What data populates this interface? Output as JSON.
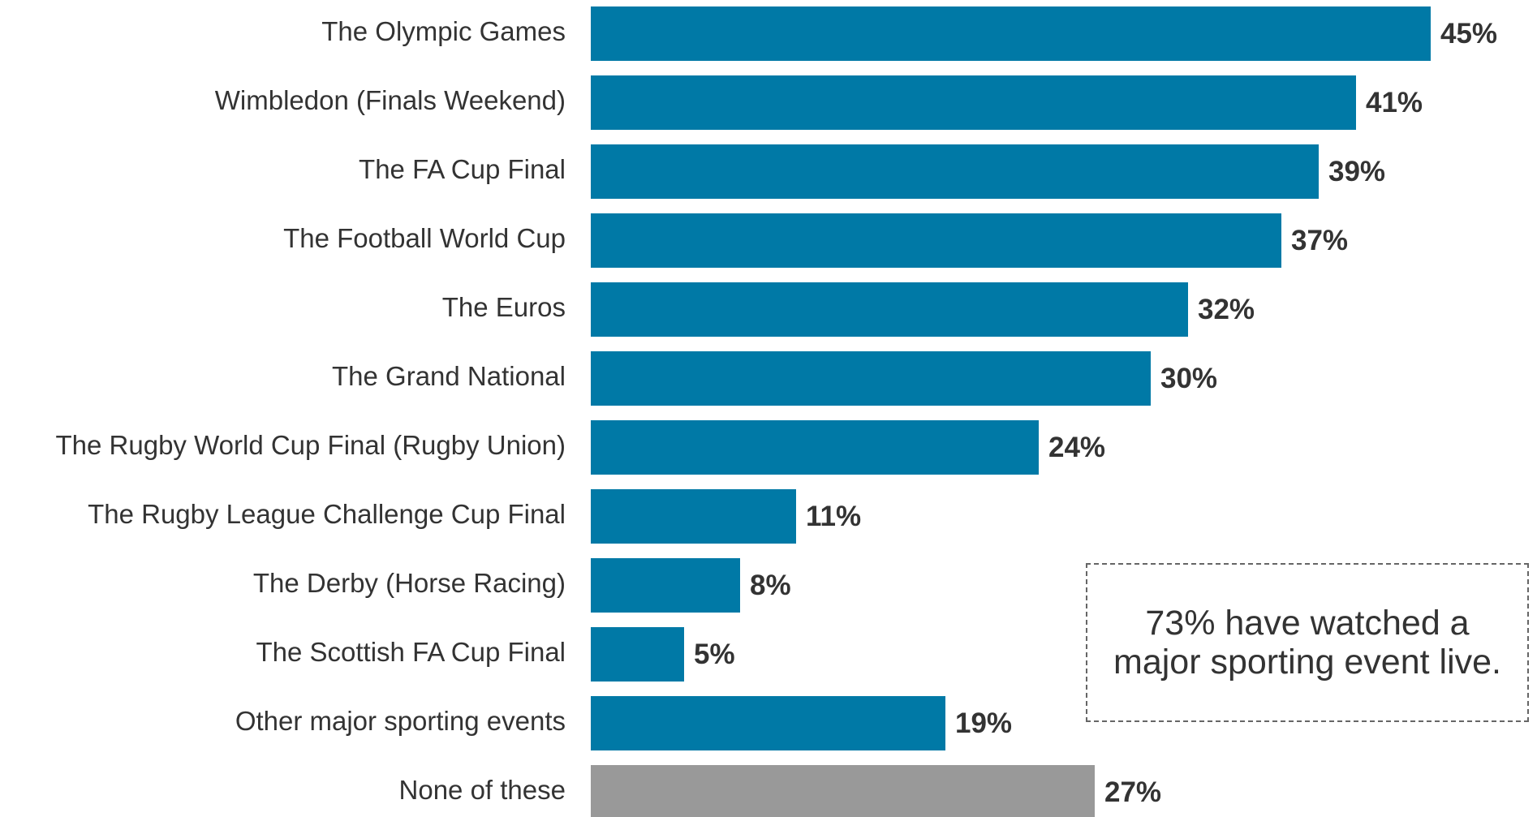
{
  "chart_data": {
    "type": "barh",
    "categories": [
      "The Olympic Games",
      "Wimbledon (Finals Weekend)",
      "The FA Cup Final",
      "The Football World Cup",
      "The Euros",
      "The Grand National",
      "The Rugby World Cup Final (Rugby Union)",
      "The Rugby League Challenge Cup Final",
      "The Derby (Horse Racing)",
      "The Scottish FA Cup Final",
      "Other major sporting events",
      "None of these"
    ],
    "values": [
      45,
      41,
      39,
      37,
      32,
      30,
      24,
      11,
      8,
      5,
      19,
      27
    ],
    "value_labels": [
      "45%",
      "41%",
      "39%",
      "37%",
      "32%",
      "30%",
      "24%",
      "11%",
      "8%",
      "5%",
      "19%",
      "27%"
    ],
    "colors": [
      "#0079a6",
      "#0079a6",
      "#0079a6",
      "#0079a6",
      "#0079a6",
      "#0079a6",
      "#0079a6",
      "#0079a6",
      "#0079a6",
      "#0079a6",
      "#0079a6",
      "#999999"
    ],
    "xlim": [
      0,
      50
    ],
    "annotation": "73% have watched a major sporting event live."
  }
}
